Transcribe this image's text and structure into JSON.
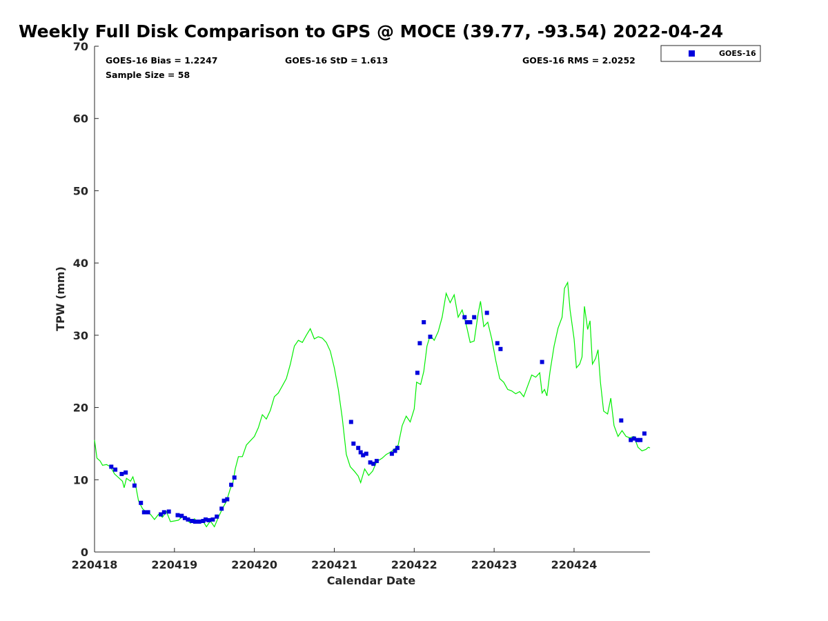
{
  "chart_data": {
    "type": "scatter",
    "title": "Weekly Full Disk Comparison to GPS @ MOCE (39.77, -93.54) 2022-04-24",
    "xlabel": "Calendar Date",
    "ylabel": "TPW (mm)",
    "xlim": [
      220418.0,
      220424.95
    ],
    "ylim": [
      0,
      70
    ],
    "x_ticks": [
      220418,
      220419,
      220420,
      220421,
      220422,
      220423,
      220424
    ],
    "x_tick_labels": [
      "220418",
      "220419",
      "220420",
      "220421",
      "220422",
      "220423",
      "220424"
    ],
    "y_ticks": [
      0,
      10,
      20,
      30,
      40,
      50,
      60,
      70
    ],
    "y_tick_labels": [
      "0",
      "10",
      "20",
      "30",
      "40",
      "50",
      "60",
      "70"
    ],
    "stats": {
      "bias": "GOES-16 Bias = 1.2247",
      "std": "GOES-16 StD = 1.613",
      "rms": "GOES-16 RMS = 2.0252",
      "sample": "Sample Size = 58"
    },
    "legend": {
      "position": "top-right-outside",
      "entries": [
        "GOES-16"
      ]
    },
    "series": [
      {
        "name": "GPS",
        "kind": "line",
        "color": "#00ee00",
        "points": [
          [
            220418.0,
            15.5
          ],
          [
            220418.03,
            13.0
          ],
          [
            220418.07,
            12.6
          ],
          [
            220418.1,
            12.0
          ],
          [
            220418.15,
            12.1
          ],
          [
            220418.2,
            11.8
          ],
          [
            220418.25,
            10.8
          ],
          [
            220418.3,
            10.3
          ],
          [
            220418.35,
            9.8
          ],
          [
            220418.37,
            8.9
          ],
          [
            220418.4,
            10.2
          ],
          [
            220418.45,
            9.8
          ],
          [
            220418.48,
            10.4
          ],
          [
            220418.52,
            8.9
          ],
          [
            220418.55,
            7.1
          ],
          [
            220418.6,
            6.0
          ],
          [
            220418.65,
            5.5
          ],
          [
            220418.7,
            5.2
          ],
          [
            220418.75,
            4.5
          ],
          [
            220418.8,
            5.2
          ],
          [
            220418.85,
            4.8
          ],
          [
            220418.9,
            5.6
          ],
          [
            220418.95,
            4.2
          ],
          [
            220419.0,
            4.3
          ],
          [
            220419.05,
            4.4
          ],
          [
            220419.1,
            4.9
          ],
          [
            220419.15,
            4.5
          ],
          [
            220419.2,
            4.0
          ],
          [
            220419.25,
            4.6
          ],
          [
            220419.3,
            4.1
          ],
          [
            220419.35,
            4.4
          ],
          [
            220419.4,
            3.5
          ],
          [
            220419.45,
            4.3
          ],
          [
            220419.5,
            3.5
          ],
          [
            220419.55,
            4.8
          ],
          [
            220419.6,
            6.0
          ],
          [
            220419.65,
            7.0
          ],
          [
            220419.7,
            8.8
          ],
          [
            220419.73,
            9.5
          ],
          [
            220419.76,
            11.5
          ],
          [
            220419.8,
            13.2
          ],
          [
            220419.85,
            13.2
          ],
          [
            220419.9,
            14.8
          ],
          [
            220420.0,
            16.0
          ],
          [
            220420.05,
            17.2
          ],
          [
            220420.1,
            19.0
          ],
          [
            220420.15,
            18.4
          ],
          [
            220420.2,
            19.6
          ],
          [
            220420.25,
            21.5
          ],
          [
            220420.3,
            22.0
          ],
          [
            220420.35,
            23.0
          ],
          [
            220420.4,
            24.0
          ],
          [
            220420.45,
            26.0
          ],
          [
            220420.5,
            28.5
          ],
          [
            220420.55,
            29.3
          ],
          [
            220420.6,
            29.0
          ],
          [
            220420.65,
            30.0
          ],
          [
            220420.7,
            30.9
          ],
          [
            220420.75,
            29.5
          ],
          [
            220420.8,
            29.8
          ],
          [
            220420.85,
            29.6
          ],
          [
            220420.9,
            29.0
          ],
          [
            220420.95,
            27.8
          ],
          [
            220421.0,
            25.5
          ],
          [
            220421.05,
            22.5
          ],
          [
            220421.1,
            18.5
          ],
          [
            220421.15,
            13.5
          ],
          [
            220421.2,
            11.8
          ],
          [
            220421.25,
            11.2
          ],
          [
            220421.3,
            10.5
          ],
          [
            220421.33,
            9.6
          ],
          [
            220421.38,
            11.5
          ],
          [
            220421.43,
            10.6
          ],
          [
            220421.48,
            11.2
          ],
          [
            220421.53,
            12.5
          ],
          [
            220421.6,
            13.0
          ],
          [
            220421.65,
            13.5
          ],
          [
            220421.7,
            13.8
          ],
          [
            220421.75,
            14.2
          ],
          [
            220421.8,
            14.8
          ],
          [
            220421.85,
            17.5
          ],
          [
            220421.9,
            18.8
          ],
          [
            220421.95,
            18.0
          ],
          [
            220422.0,
            19.8
          ],
          [
            220422.03,
            23.5
          ],
          [
            220422.08,
            23.2
          ],
          [
            220422.12,
            25.0
          ],
          [
            220422.16,
            28.5
          ],
          [
            220422.2,
            30.0
          ],
          [
            220422.25,
            29.3
          ],
          [
            220422.3,
            30.5
          ],
          [
            220422.35,
            32.5
          ],
          [
            220422.4,
            35.8
          ],
          [
            220422.45,
            34.5
          ],
          [
            220422.5,
            35.6
          ],
          [
            220422.55,
            32.5
          ],
          [
            220422.6,
            33.5
          ],
          [
            220422.65,
            31.5
          ],
          [
            220422.7,
            29.0
          ],
          [
            220422.75,
            29.2
          ],
          [
            220422.8,
            33.0
          ],
          [
            220422.83,
            34.7
          ],
          [
            220422.87,
            31.2
          ],
          [
            220422.92,
            31.8
          ],
          [
            220422.97,
            29.5
          ],
          [
            220423.02,
            26.5
          ],
          [
            220423.07,
            24.0
          ],
          [
            220423.12,
            23.5
          ],
          [
            220423.17,
            22.5
          ],
          [
            220423.22,
            22.3
          ],
          [
            220423.27,
            21.9
          ],
          [
            220423.32,
            22.2
          ],
          [
            220423.37,
            21.5
          ],
          [
            220423.42,
            23.0
          ],
          [
            220423.47,
            24.5
          ],
          [
            220423.52,
            24.2
          ],
          [
            220423.57,
            24.8
          ],
          [
            220423.6,
            22.0
          ],
          [
            220423.63,
            22.5
          ],
          [
            220423.66,
            21.6
          ],
          [
            220423.7,
            25.0
          ],
          [
            220423.75,
            28.5
          ],
          [
            220423.8,
            31.0
          ],
          [
            220423.85,
            32.5
          ],
          [
            220423.88,
            36.5
          ],
          [
            220423.92,
            37.3
          ],
          [
            220423.95,
            33.5
          ],
          [
            220424.0,
            29.5
          ],
          [
            220424.03,
            25.5
          ],
          [
            220424.07,
            26.0
          ],
          [
            220424.1,
            27.0
          ],
          [
            220424.13,
            34.0
          ],
          [
            220424.17,
            30.8
          ],
          [
            220424.2,
            32.0
          ],
          [
            220424.23,
            26.0
          ],
          [
            220424.27,
            26.8
          ],
          [
            220424.3,
            28.0
          ],
          [
            220424.33,
            23.5
          ],
          [
            220424.37,
            19.5
          ],
          [
            220424.42,
            19.1
          ],
          [
            220424.46,
            21.3
          ],
          [
            220424.5,
            17.5
          ],
          [
            220424.55,
            16.0
          ],
          [
            220424.6,
            16.8
          ],
          [
            220424.65,
            16.0
          ],
          [
            220424.7,
            15.8
          ],
          [
            220424.75,
            16.0
          ],
          [
            220424.8,
            14.5
          ],
          [
            220424.85,
            14.0
          ],
          [
            220424.9,
            14.2
          ],
          [
            220424.93,
            14.5
          ],
          [
            220424.95,
            14.4
          ]
        ]
      },
      {
        "name": "GOES-16",
        "kind": "scatter",
        "color": "#0000dd",
        "points": [
          [
            220418.21,
            11.8
          ],
          [
            220418.26,
            11.4
          ],
          [
            220418.34,
            10.8
          ],
          [
            220418.39,
            11.0
          ],
          [
            220418.5,
            9.2
          ],
          [
            220418.58,
            6.8
          ],
          [
            220418.62,
            5.5
          ],
          [
            220418.67,
            5.5
          ],
          [
            220418.83,
            5.2
          ],
          [
            220418.87,
            5.5
          ],
          [
            220418.93,
            5.6
          ],
          [
            220419.04,
            5.1
          ],
          [
            220419.09,
            5.0
          ],
          [
            220419.13,
            4.7
          ],
          [
            220419.17,
            4.5
          ],
          [
            220419.22,
            4.3
          ],
          [
            220419.26,
            4.2
          ],
          [
            220419.31,
            4.2
          ],
          [
            220419.36,
            4.3
          ],
          [
            220419.39,
            4.5
          ],
          [
            220419.43,
            4.4
          ],
          [
            220419.48,
            4.5
          ],
          [
            220419.53,
            4.9
          ],
          [
            220419.59,
            6.0
          ],
          [
            220419.62,
            7.1
          ],
          [
            220419.66,
            7.3
          ],
          [
            220419.71,
            9.3
          ],
          [
            220419.75,
            10.3
          ],
          [
            220421.21,
            18.0
          ],
          [
            220421.24,
            15.0
          ],
          [
            220421.3,
            14.4
          ],
          [
            220421.33,
            13.8
          ],
          [
            220421.36,
            13.4
          ],
          [
            220421.4,
            13.6
          ],
          [
            220421.45,
            12.4
          ],
          [
            220421.49,
            12.2
          ],
          [
            220421.53,
            12.6
          ],
          [
            220421.72,
            13.6
          ],
          [
            220421.76,
            14.0
          ],
          [
            220421.79,
            14.4
          ],
          [
            220422.04,
            24.8
          ],
          [
            220422.07,
            28.9
          ],
          [
            220422.12,
            31.8
          ],
          [
            220422.2,
            29.8
          ],
          [
            220422.63,
            32.5
          ],
          [
            220422.66,
            31.8
          ],
          [
            220422.7,
            31.8
          ],
          [
            220422.75,
            32.5
          ],
          [
            220422.91,
            33.1
          ],
          [
            220423.04,
            28.9
          ],
          [
            220423.08,
            28.1
          ],
          [
            220423.6,
            26.3
          ],
          [
            220424.59,
            18.2
          ],
          [
            220424.71,
            15.5
          ],
          [
            220424.75,
            15.7
          ],
          [
            220424.79,
            15.5
          ],
          [
            220424.83,
            15.5
          ],
          [
            220424.88,
            16.4
          ]
        ]
      }
    ]
  }
}
